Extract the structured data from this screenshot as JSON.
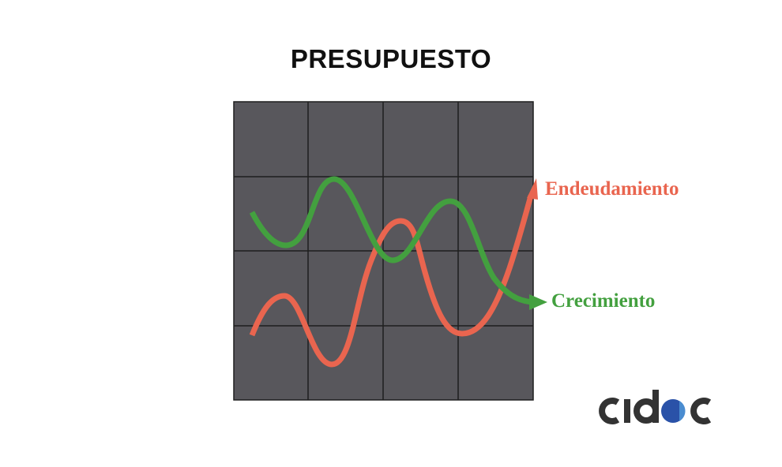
{
  "title": "PRESUPUESTO",
  "labels": {
    "debt": "Endeudamiento",
    "growth": "Crecimiento"
  },
  "colors": {
    "background_grid": "#58575c",
    "grid_lines": "#1e1e1e",
    "debt": "#e9654f",
    "growth": "#43a03f",
    "logo_text": "#333333",
    "logo_dot": "#2a52a8"
  },
  "logo": "cidac"
}
